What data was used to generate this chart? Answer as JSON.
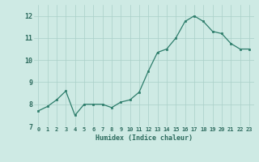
{
  "x": [
    0,
    1,
    2,
    3,
    4,
    5,
    6,
    7,
    8,
    9,
    10,
    11,
    12,
    13,
    14,
    15,
    16,
    17,
    18,
    19,
    20,
    21,
    22,
    23
  ],
  "y": [
    7.7,
    7.9,
    8.2,
    8.6,
    7.5,
    8.0,
    8.0,
    8.0,
    7.85,
    8.1,
    8.2,
    8.55,
    9.5,
    10.35,
    10.5,
    11.0,
    11.75,
    12.0,
    11.75,
    11.3,
    11.2,
    10.75,
    10.5,
    10.5
  ],
  "xlabel": "Humidex (Indice chaleur)",
  "ylim": [
    7,
    12.5
  ],
  "xlim": [
    -0.5,
    23.5
  ],
  "yticks": [
    7,
    8,
    9,
    10,
    11,
    12
  ],
  "xtick_labels": [
    "0",
    "1",
    "2",
    "3",
    "4",
    "5",
    "6",
    "7",
    "8",
    "9",
    "10",
    "11",
    "12",
    "13",
    "14",
    "15",
    "16",
    "17",
    "18",
    "19",
    "20",
    "21",
    "22",
    "23"
  ],
  "line_color": "#2d7d6b",
  "marker_color": "#2d7d6b",
  "bg_color": "#ceeae4",
  "grid_color": "#aacfc8",
  "text_color": "#2d6b5e"
}
